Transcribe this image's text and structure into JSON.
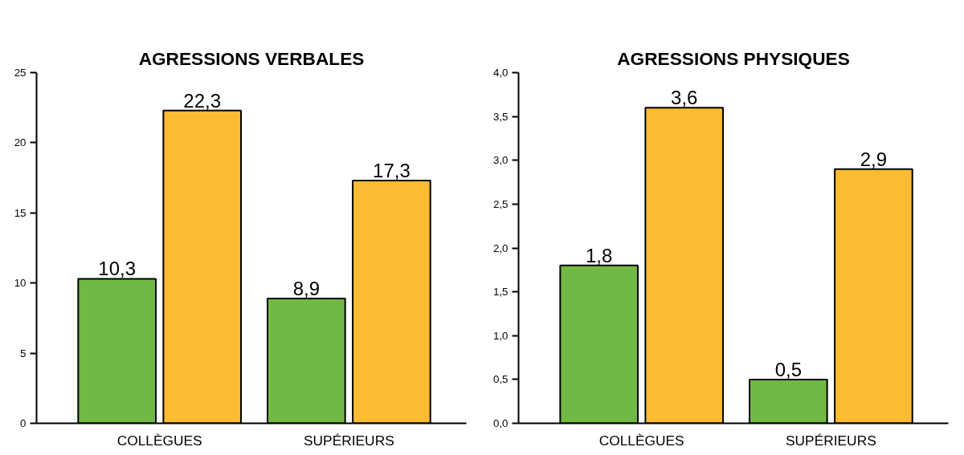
{
  "chart_data": [
    {
      "type": "bar",
      "title": "AGRESSIONS VERBALES",
      "categories": [
        "COLLÈGUES",
        "SUPÉRIEURS"
      ],
      "series": [
        {
          "color": "#72b845",
          "values": [
            10.3,
            8.9
          ],
          "value_labels": [
            "10,3",
            "8,9"
          ]
        },
        {
          "color": "#fbbc33",
          "values": [
            22.3,
            17.3
          ],
          "value_labels": [
            "22,3",
            "17,3"
          ]
        }
      ],
      "ylim": [
        0,
        25
      ],
      "yticks": [
        0,
        5,
        10,
        15,
        20,
        25
      ]
    },
    {
      "type": "bar",
      "title": "AGRESSIONS PHYSIQUES",
      "categories": [
        "COLLÈGUES",
        "SUPÉRIEURS"
      ],
      "series": [
        {
          "color": "#72b845",
          "values": [
            1.8,
            0.5
          ],
          "value_labels": [
            "1,8",
            "0,5"
          ]
        },
        {
          "color": "#fbbc33",
          "values": [
            3.6,
            2.9
          ],
          "value_labels": [
            "3,6",
            "2,9"
          ]
        }
      ],
      "ylim": [
        0,
        4
      ],
      "yticks": [
        {
          "value": 0,
          "label": "0,0"
        },
        {
          "value": 0.5,
          "label": "0,5"
        },
        {
          "value": 1,
          "label": "1,0"
        },
        {
          "value": 1.5,
          "label": "1,5"
        },
        {
          "value": 2,
          "label": "2,0"
        },
        {
          "value": 2.5,
          "label": "2,5"
        },
        {
          "value": 3,
          "label": "3,0"
        },
        {
          "value": 3.5,
          "label": "3,5"
        },
        {
          "value": 4,
          "label": "4,0"
        }
      ]
    }
  ]
}
